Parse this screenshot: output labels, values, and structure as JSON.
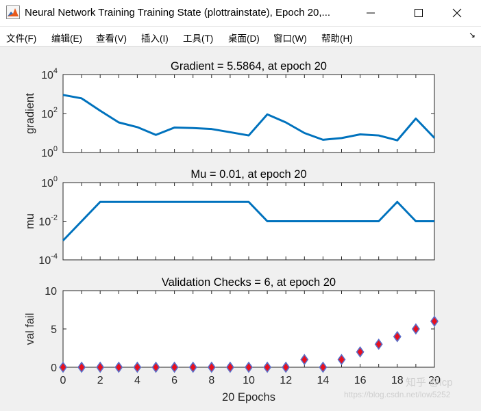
{
  "window": {
    "title": "Neural Network Training Training State (plottrainstate), Epoch 20,...",
    "menu": [
      "文件(F)",
      "编辑(E)",
      "查看(V)",
      "插入(I)",
      "工具(T)",
      "桌面(D)",
      "窗口(W)",
      "帮助(H)"
    ]
  },
  "watermark": {
    "brand": "知乎 @lcp",
    "url": "https://blog.csdn.net/low5252"
  },
  "chart_data": [
    {
      "type": "line",
      "title": "Gradient = 5.5864, at epoch 20",
      "xlabel": "",
      "ylabel": "gradient",
      "yscale": "log",
      "xlim": [
        0,
        20
      ],
      "ylim": [
        1,
        10000
      ],
      "yticks": [
        1,
        100,
        10000
      ],
      "ytick_labels": [
        {
          "base": "10",
          "exp": "0"
        },
        {
          "base": "10",
          "exp": "2"
        },
        {
          "base": "10",
          "exp": "4"
        }
      ],
      "color": "#0072bd",
      "series": [
        {
          "x": [
            0,
            1,
            2,
            3,
            4,
            5,
            6,
            7,
            8,
            9,
            10,
            11,
            12,
            13,
            14,
            15,
            16,
            17,
            18,
            19,
            20
          ],
          "y": [
            900,
            600,
            140,
            35,
            20,
            8,
            19,
            18,
            16,
            11,
            7.5,
            90,
            35,
            10,
            4.5,
            5.5,
            8.5,
            7.5,
            4.2,
            55,
            5.5864
          ]
        }
      ]
    },
    {
      "type": "line",
      "title": "Mu = 0.01, at epoch 20",
      "xlabel": "",
      "ylabel": "mu",
      "yscale": "log",
      "xlim": [
        0,
        20
      ],
      "ylim": [
        0.0001,
        1
      ],
      "yticks": [
        0.0001,
        0.01,
        1
      ],
      "ytick_labels": [
        {
          "base": "10",
          "exp": "-4"
        },
        {
          "base": "10",
          "exp": "-2"
        },
        {
          "base": "10",
          "exp": "0"
        }
      ],
      "color": "#0072bd",
      "series": [
        {
          "x": [
            0,
            1,
            2,
            3,
            4,
            5,
            6,
            7,
            8,
            9,
            10,
            11,
            12,
            13,
            14,
            15,
            16,
            17,
            18,
            19,
            20
          ],
          "y": [
            0.001,
            0.01,
            0.1,
            0.1,
            0.1,
            0.1,
            0.1,
            0.1,
            0.1,
            0.1,
            0.1,
            0.01,
            0.01,
            0.01,
            0.01,
            0.01,
            0.01,
            0.01,
            0.1,
            0.01,
            0.01
          ]
        }
      ]
    },
    {
      "type": "scatter",
      "title": "Validation Checks = 6, at epoch 20",
      "xlabel": "20 Epochs",
      "ylabel": "val fail",
      "yscale": "linear",
      "xlim": [
        0,
        20
      ],
      "ylim": [
        0,
        10
      ],
      "xticks": [
        0,
        2,
        4,
        6,
        8,
        10,
        12,
        14,
        16,
        18,
        20
      ],
      "yticks": [
        0,
        5,
        10
      ],
      "marker": "diamond",
      "marker_face": "#e8101e",
      "marker_edge": "#5b6ec8",
      "series": [
        {
          "x": [
            0,
            1,
            2,
            3,
            4,
            5,
            6,
            7,
            8,
            9,
            10,
            11,
            12,
            13,
            14,
            15,
            16,
            17,
            18,
            19,
            20
          ],
          "y": [
            0,
            0,
            0,
            0,
            0,
            0,
            0,
            0,
            0,
            0,
            0,
            0,
            0,
            1,
            0,
            1,
            2,
            3,
            4,
            5,
            6
          ]
        }
      ]
    }
  ]
}
